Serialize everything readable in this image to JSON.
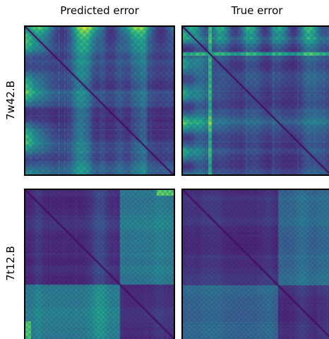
{
  "figure": {
    "column_titles": [
      "Predicted error",
      "True error"
    ],
    "row_labels": [
      "7w42.B",
      "7t12.B"
    ]
  },
  "chart_data": {
    "type": "heatmap",
    "colormap": "viridis",
    "colorbar": false,
    "columns": [
      "Predicted error",
      "True error"
    ],
    "rows": [
      "7w42.B",
      "7t12.B"
    ],
    "panels": [
      {
        "row": "7w42.B",
        "column": "Predicted error",
        "diagonal": "dark",
        "bright_regions": [
          "top band",
          "left band"
        ]
      },
      {
        "row": "7w42.B",
        "column": "True error",
        "diagonal": "dark",
        "bright_regions": [
          "top band",
          "left band"
        ]
      },
      {
        "row": "7t12.B",
        "column": "Predicted error",
        "diagonal": "dark",
        "bright_regions": [
          "upper-right block",
          "lower-left block"
        ]
      },
      {
        "row": "7t12.B",
        "column": "True error",
        "diagonal": "dark",
        "bright_regions": [
          "upper-right block",
          "lower-left block"
        ]
      }
    ]
  }
}
